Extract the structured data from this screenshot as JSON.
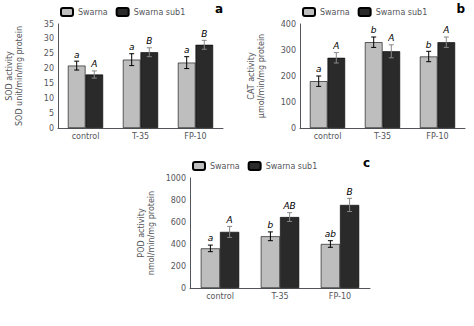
{
  "chart_data": [
    {
      "type": "bar",
      "title": "a",
      "ylabel": "SOD activity\nSOD unit/min/mg protein",
      "categories": [
        "control",
        "T-35",
        "FP-10"
      ],
      "series": [
        {
          "name": "Swarna",
          "color": "#BEBEBE",
          "values": [
            21.0,
            23.0,
            22.0
          ],
          "errors": [
            1.5,
            2.0,
            2.0
          ],
          "annotations": [
            "a",
            "a",
            "a"
          ]
        },
        {
          "name": "Swarna sub1",
          "color": "#2A2A2A",
          "values": [
            18.0,
            25.5,
            28.0
          ],
          "errors": [
            1.2,
            1.5,
            1.5
          ],
          "annotations": [
            "A",
            "B",
            "B"
          ]
        }
      ],
      "ylim": [
        0,
        35
      ],
      "yticks": [
        0,
        5,
        10,
        15,
        20,
        25,
        30,
        35
      ],
      "grid": false,
      "legend": "upper left"
    },
    {
      "type": "bar",
      "title": "b",
      "ylabel": "CAT activity\nμmol/min/mg protein",
      "categories": [
        "control",
        "T-35",
        "FP-10"
      ],
      "series": [
        {
          "name": "Swarna",
          "color": "#BEBEBE",
          "values": [
            180.0,
            330.0,
            275.0
          ],
          "errors": [
            20.0,
            20.0,
            20.0
          ],
          "annotations": [
            "a",
            "b",
            "b"
          ]
        },
        {
          "name": "Swarna sub1",
          "color": "#2A2A2A",
          "values": [
            270.0,
            295.0,
            330.0
          ],
          "errors": [
            20.0,
            25.0,
            20.0
          ],
          "annotations": [
            "A",
            "A",
            "A"
          ]
        }
      ],
      "ylim": [
        0,
        400
      ],
      "yticks": [
        0,
        100,
        200,
        300,
        400
      ],
      "grid": false,
      "legend": "upper left"
    },
    {
      "type": "bar",
      "title": "c",
      "ylabel": "POD activity\nnmol/min/mg protein",
      "categories": [
        "control",
        "T-35",
        "FP-10"
      ],
      "series": [
        {
          "name": "Swarna",
          "color": "#BEBEBE",
          "values": [
            360.0,
            470.0,
            400.0
          ],
          "errors": [
            30.0,
            40.0,
            30.0
          ],
          "annotations": [
            "a",
            "b",
            "ab"
          ]
        },
        {
          "name": "Swarna sub1",
          "color": "#2A2A2A",
          "values": [
            510.0,
            645.0,
            755.0
          ],
          "errors": [
            50.0,
            40.0,
            60.0
          ],
          "annotations": [
            "A",
            "AB",
            "B"
          ]
        }
      ],
      "ylim": [
        0,
        1000
      ],
      "yticks": [
        0,
        200,
        400,
        600,
        800,
        1000
      ],
      "grid": false,
      "legend": "upper left"
    }
  ]
}
